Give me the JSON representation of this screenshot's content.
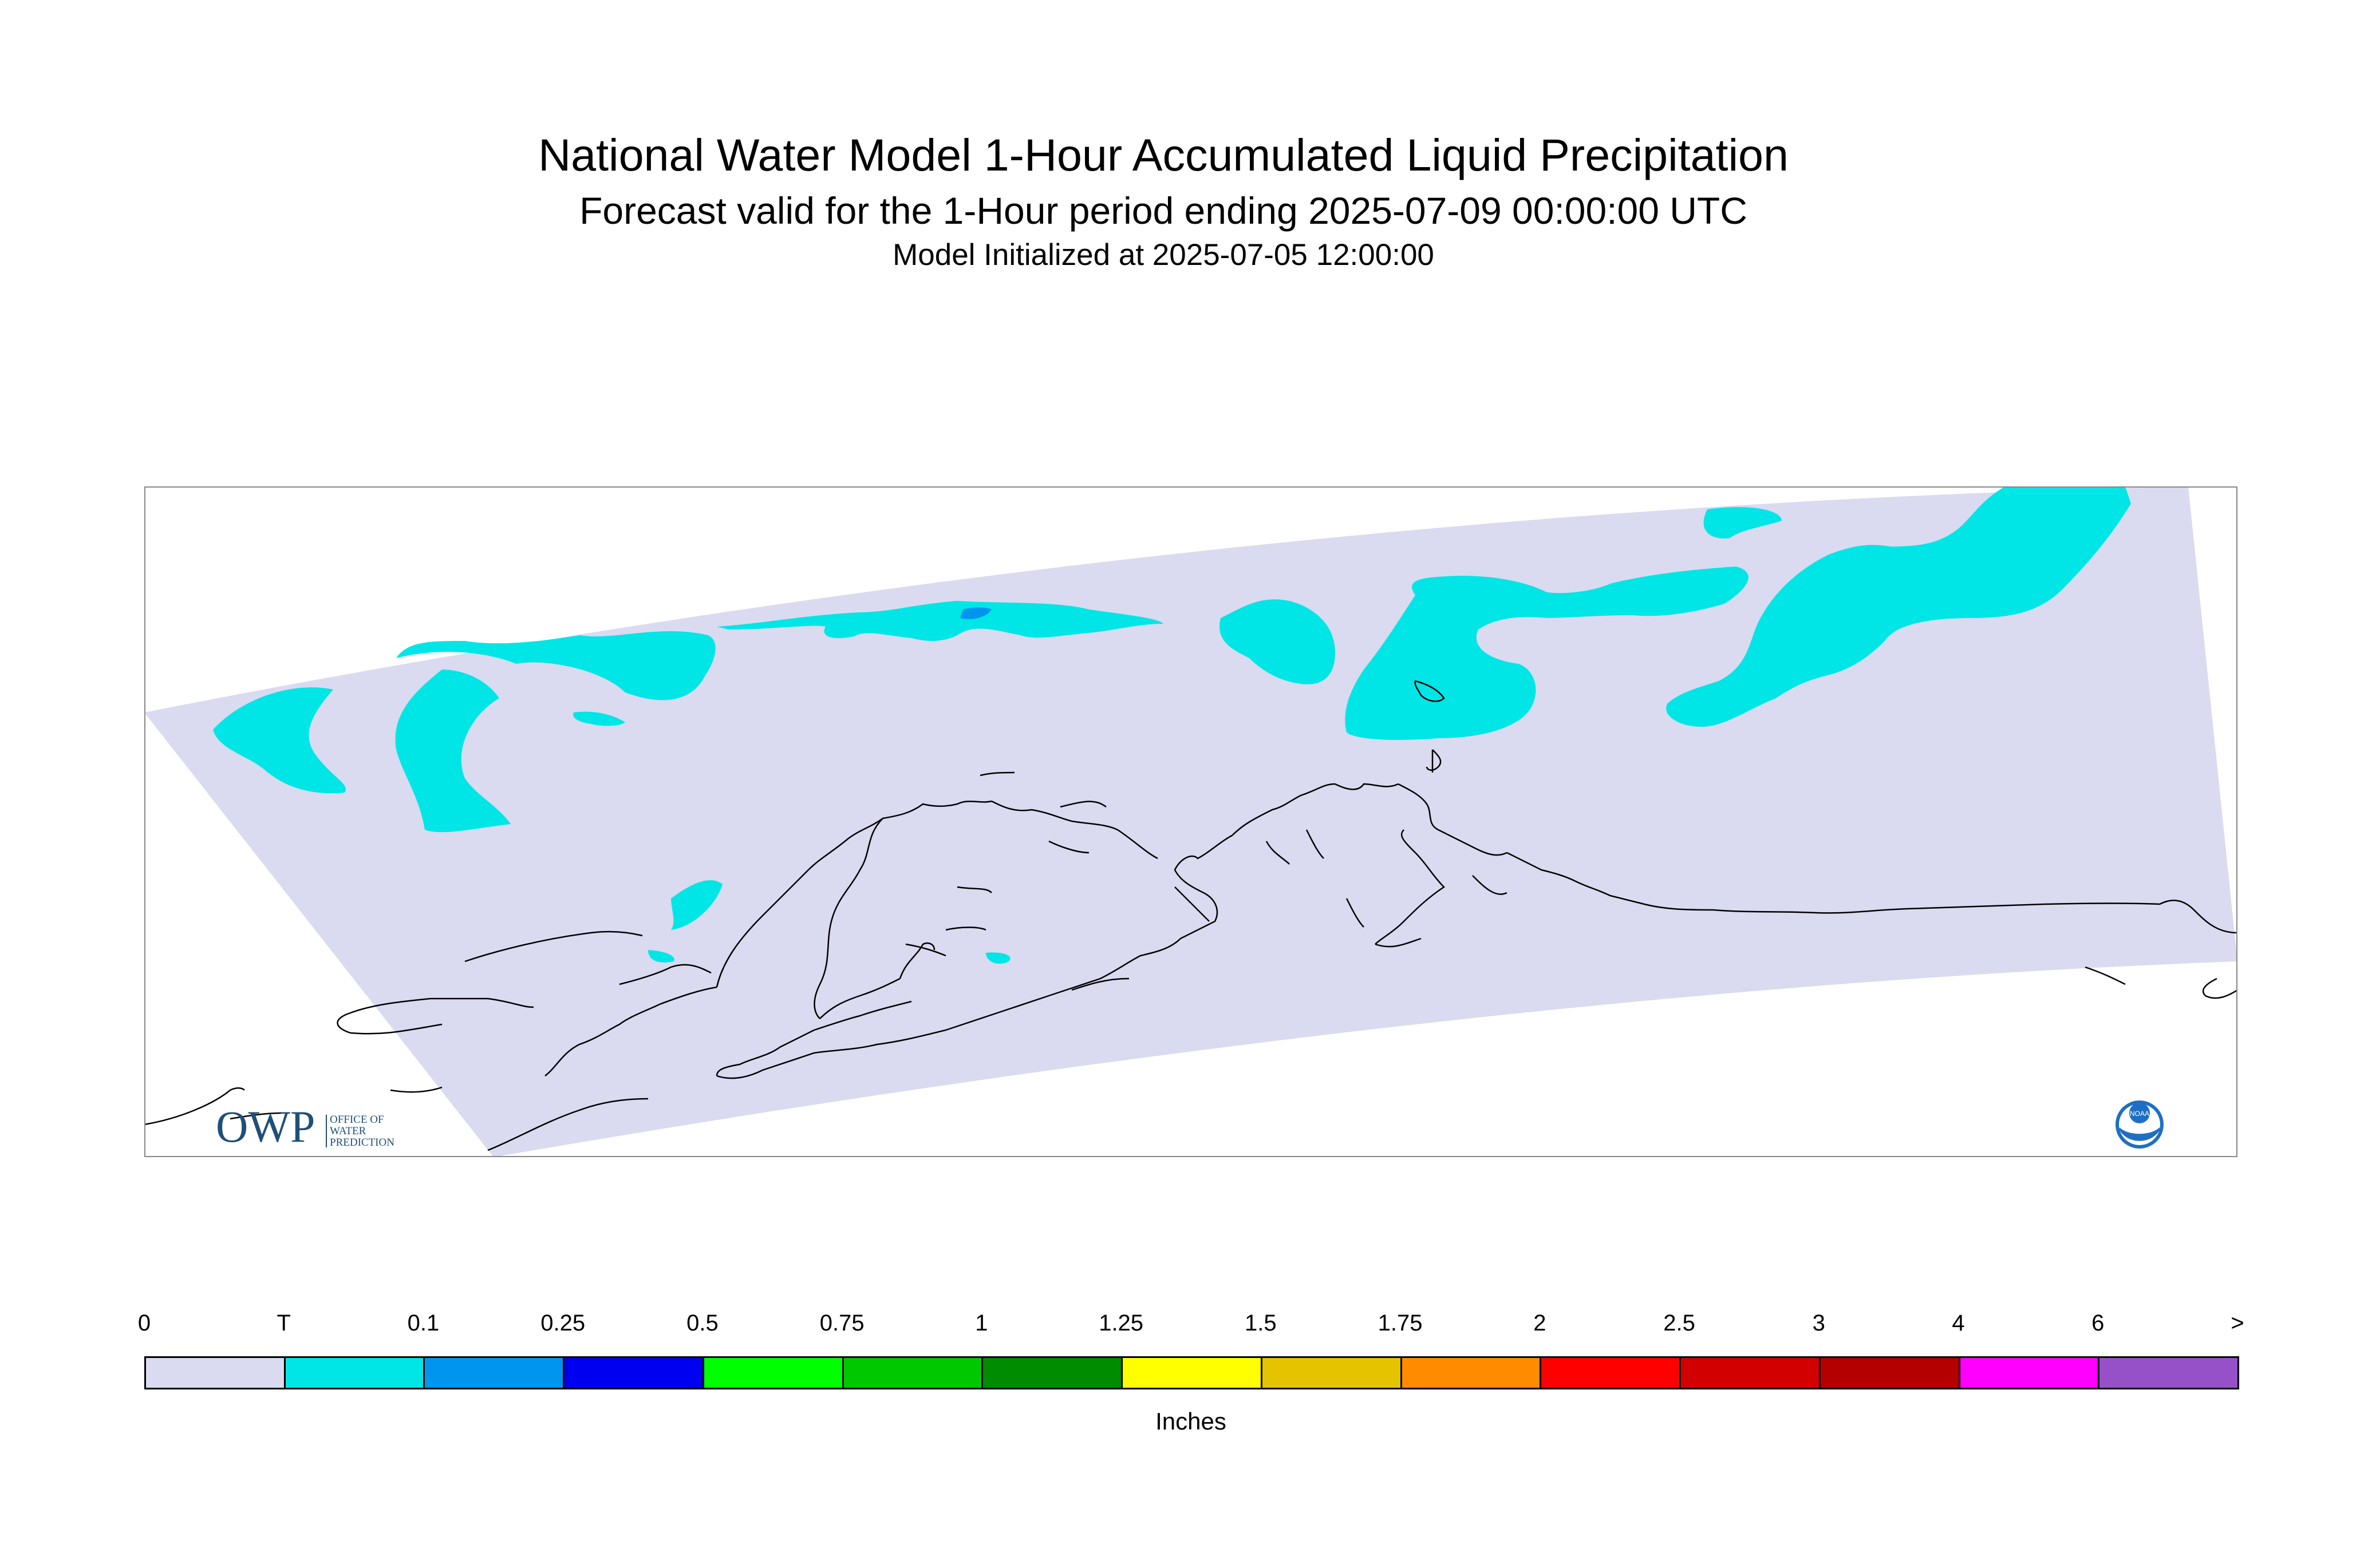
{
  "header": {
    "title": "National Water Model 1-Hour Accumulated Liquid Precipitation",
    "subtitle": "Forecast valid for the 1-Hour period ending 2025-07-09 00:00:00 UTC",
    "init": "Model Initialized at 2025-07-05 12:00:00"
  },
  "logos": {
    "owp_mark": "OWP",
    "owp_text": [
      "OFFICE OF",
      "WATER",
      "PREDICTION"
    ],
    "noaa": "NOAA"
  },
  "legend": {
    "labels": [
      "0",
      "T",
      "0.1",
      "0.25",
      "0.5",
      "0.75",
      "1",
      "1.25",
      "1.5",
      "1.75",
      "2",
      "2.5",
      "3",
      "4",
      "6",
      ">"
    ],
    "colors": [
      "#dadaf0",
      "#00e6e6",
      "#0096f0",
      "#0000f0",
      "#00ff00",
      "#00c800",
      "#008c00",
      "#ffff00",
      "#e6c300",
      "#ff8c00",
      "#ff0000",
      "#d20000",
      "#b40000",
      "#ff00ff",
      "#9650c8"
    ],
    "units": "Inches"
  },
  "map": {
    "domain_fill": "#dadaf0",
    "trace_color": "#00e6e6",
    "light_color": "#0096f0",
    "coast_color": "#000000"
  }
}
